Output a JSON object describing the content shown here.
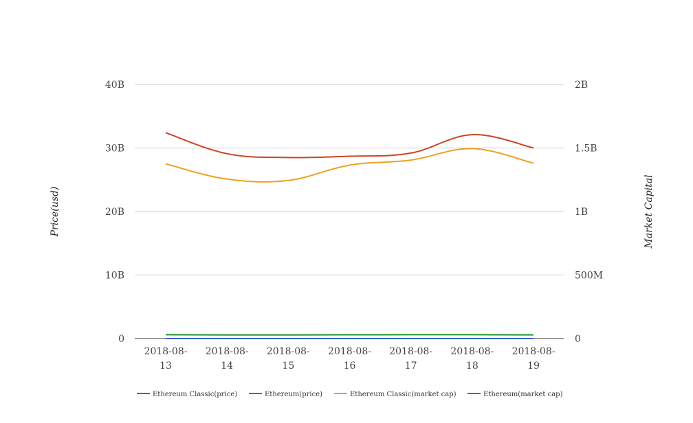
{
  "chart_data": {
    "type": "line",
    "title": "",
    "x": [
      "2018-08-13",
      "2018-08-14",
      "2018-08-15",
      "2018-08-16",
      "2018-08-17",
      "2018-08-18",
      "2018-08-19"
    ],
    "x_tick_labels": [
      [
        "2018-08-",
        "13"
      ],
      [
        "2018-08-",
        "14"
      ],
      [
        "2018-08-",
        "15"
      ],
      [
        "2018-08-",
        "16"
      ],
      [
        "2018-08-",
        "17"
      ],
      [
        "2018-08-",
        "18"
      ],
      [
        "2018-08-",
        "19"
      ]
    ],
    "ylabel": "Price(usd)",
    "ylabel_right": "Market Capital",
    "ylim": [
      0,
      40000000000
    ],
    "ylim_right": [
      0,
      2000000000
    ],
    "y_ticks": [
      {
        "value": 0,
        "label": "0"
      },
      {
        "value": 10000000000,
        "label": "10B"
      },
      {
        "value": 20000000000,
        "label": "20B"
      },
      {
        "value": 30000000000,
        "label": "30B"
      },
      {
        "value": 40000000000,
        "label": "40B"
      }
    ],
    "y_ticks_right": [
      {
        "value": 0,
        "label": "0"
      },
      {
        "value": 500000000,
        "label": "500M"
      },
      {
        "value": 1000000000,
        "label": "1B"
      },
      {
        "value": 1500000000,
        "label": "1.5B"
      },
      {
        "value": 2000000000,
        "label": "2B"
      }
    ],
    "grid": true,
    "legend_position": "bottom",
    "series": [
      {
        "name": "Ethereum Classic(price)",
        "color": "#3366cc",
        "axis": "left",
        "values": [
          14.5,
          13.6,
          13.4,
          13.6,
          13.9,
          14.3,
          13.9
        ]
      },
      {
        "name": "Ethereum(price)",
        "color": "#cc4422",
        "axis": "left",
        "values": [
          32400000000,
          29100000000,
          28500000000,
          28700000000,
          29200000000,
          32100000000,
          30000000000
        ]
      },
      {
        "name": "Ethereum Classic(market cap)",
        "color": "#f0a020",
        "axis": "right",
        "values": [
          1375000000,
          1255000000,
          1245000000,
          1365000000,
          1405000000,
          1495000000,
          1380000000
        ]
      },
      {
        "name": "Ethereum(market cap)",
        "color": "#22962a",
        "axis": "right",
        "values": [
          30300000,
          28600000,
          28900000,
          29600000,
          30500000,
          30200000,
          29100000
        ]
      }
    ]
  }
}
